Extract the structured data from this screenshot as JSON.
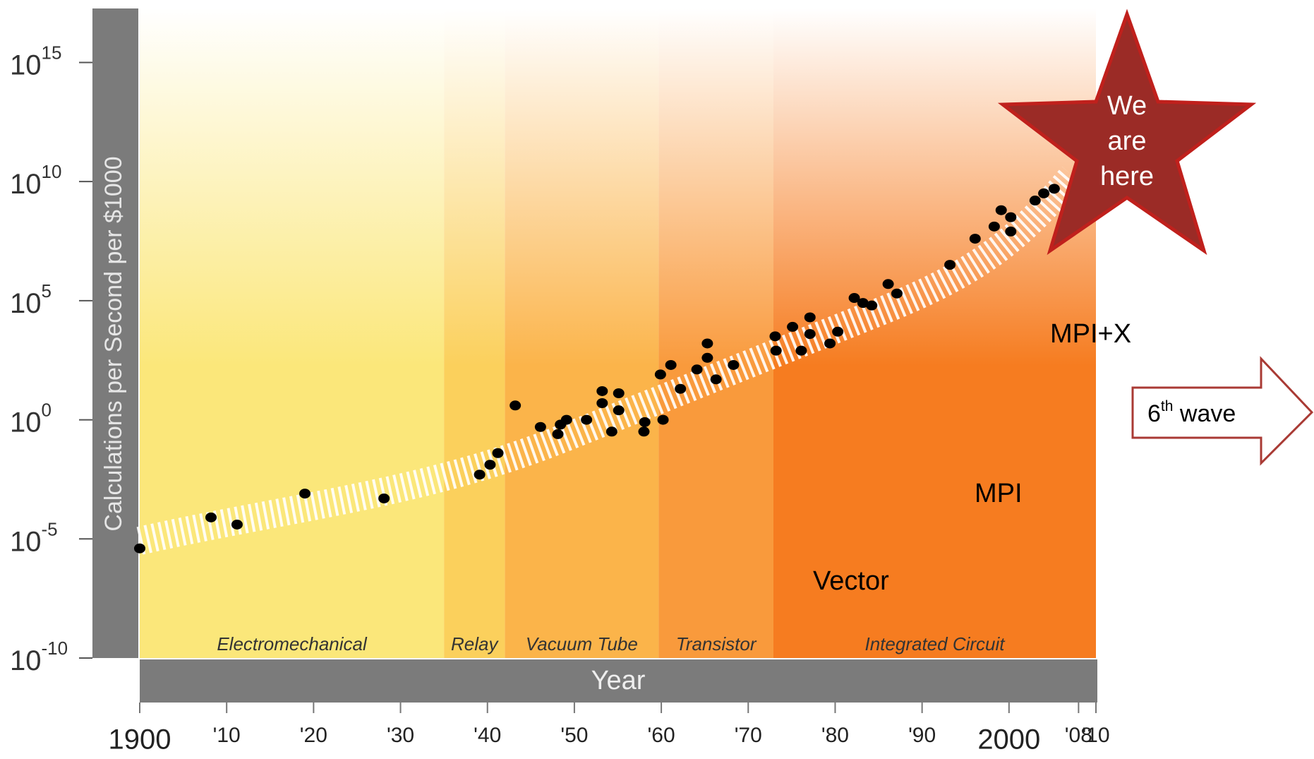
{
  "chart_data": {
    "type": "scatter",
    "y_label": "Calculations per Second per $1000",
    "x_label": "Year",
    "log_scale_y": true,
    "color": "#000000",
    "x": [
      1900,
      1908.2,
      1911.2,
      1919,
      1928.1,
      1939.1,
      1940.3,
      1941.2,
      1943.2,
      1946.1,
      1948.1,
      1948.4,
      1949.1,
      1951.4,
      1953.2,
      1953.2,
      1954.3,
      1955.1,
      1955.1,
      1958,
      1958.1,
      1959.9,
      1960.2,
      1961.1,
      1962.2,
      1964.1,
      1965.3,
      1965.3,
      1966.3,
      1968.3,
      1973.1,
      1973.2,
      1975.1,
      1976.1,
      1977.1,
      1977.1,
      1979.4,
      1980.3,
      1982.2,
      1983.2,
      1984.2,
      1986.1,
      1987.1,
      1993.2,
      1996.1,
      1998.3,
      1999.1,
      2000.2,
      2000.2,
      2003,
      2004,
      2005.2
    ],
    "values": [
      4e-06,
      8e-05,
      4e-05,
      0.0008,
      0.0005,
      0.005,
      0.013,
      0.04,
      4,
      0.5,
      0.25,
      0.63,
      1,
      1,
      5,
      16,
      0.32,
      2.5,
      13,
      0.32,
      0.8,
      80,
      1,
      200,
      20,
      130,
      400,
      1600,
      50,
      200,
      3200,
      800,
      8000,
      800,
      20000,
      4000,
      1600,
      5000,
      130000,
      80000,
      63000,
      500000,
      200000,
      3200000,
      40000000,
      130000000,
      630000000,
      320000000,
      80000000,
      1600000000,
      3200000000,
      5000000000
    ],
    "xlim": [
      1900,
      2010
    ],
    "ylim": [
      1e-10,
      1e+17
    ],
    "xticks": [
      {
        "value": 1900,
        "label": "1900"
      },
      {
        "value": 1910,
        "label": "'10"
      },
      {
        "value": 1920,
        "label": "'20"
      },
      {
        "value": 1930,
        "label": "'30"
      },
      {
        "value": 1940,
        "label": "'40"
      },
      {
        "value": 1950,
        "label": "'50"
      },
      {
        "value": 1960,
        "label": "'60"
      },
      {
        "value": 1970,
        "label": "'70"
      },
      {
        "value": 1980,
        "label": "'80"
      },
      {
        "value": 1990,
        "label": "'90"
      },
      {
        "value": 2000,
        "label": "2000"
      },
      {
        "value": 2008,
        "label": "'08"
      },
      {
        "value": 2010,
        "label": "'10"
      }
    ],
    "yticks": [
      {
        "value": 1000000000000000.0,
        "label": "10^15"
      },
      {
        "value": 10000000000.0,
        "label": "10^10"
      },
      {
        "value": 100000.0,
        "label": "10^5"
      },
      {
        "value": 1,
        "label": "10^0"
      },
      {
        "value": 1e-05,
        "label": "10^-5"
      },
      {
        "value": 1e-10,
        "label": "10^-10"
      }
    ],
    "eras": [
      {
        "name": "Electromechanical",
        "start": 1900,
        "end": 1935,
        "color": "#fbe77a"
      },
      {
        "name": "Relay",
        "start": 1935,
        "end": 1942,
        "color": "#fbd05c"
      },
      {
        "name": "Vacuum Tube",
        "start": 1942,
        "end": 1959.7,
        "color": "#fbb44a"
      },
      {
        "name": "Transistor",
        "start": 1959.7,
        "end": 1972.9,
        "color": "#f99a3c"
      },
      {
        "name": "Integrated Circuit",
        "start": 1972.9,
        "end": 2010,
        "color": "#f67c20"
      }
    ],
    "annotations": {
      "star": [
        "We",
        "are",
        "here"
      ],
      "mpi_x": "MPI+X",
      "mpi": "MPI",
      "vector": "Vector",
      "wave_number": "6",
      "wave_suffix": "th",
      "wave_text": " wave"
    }
  }
}
